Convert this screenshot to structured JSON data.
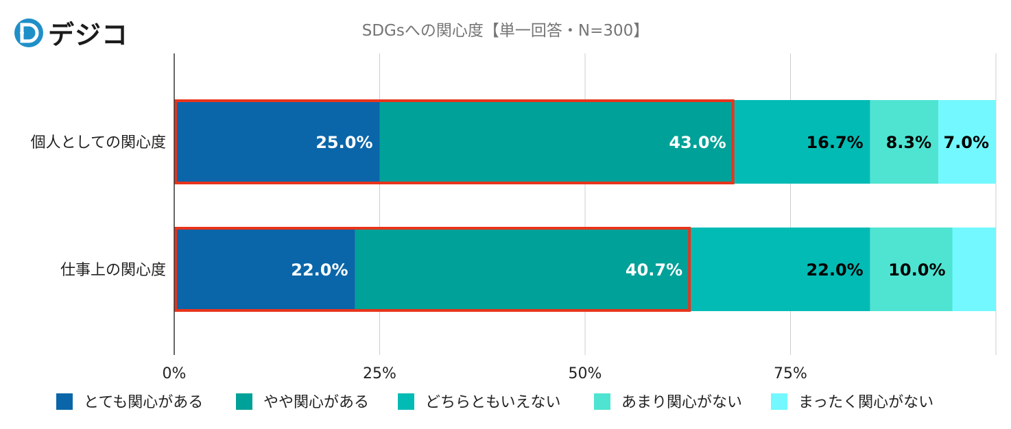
{
  "brand": {
    "name": "デジコ",
    "accent": "#1f9fd0"
  },
  "chart_data": {
    "type": "bar",
    "stacked": true,
    "orientation": "horizontal",
    "title": "SDGsへの関心度【単一回答・N=300】",
    "categories": [
      "個人としての関心度",
      "仕事上の関心度"
    ],
    "series": [
      {
        "name": "とても関心がある",
        "color": "#0a66a9",
        "values": [
          25.0,
          22.0
        ],
        "labels": [
          "25.0%",
          "22.0%"
        ],
        "label_color": "#ffffff"
      },
      {
        "name": "やや関心がある",
        "color": "#00a198",
        "values": [
          43.0,
          40.7
        ],
        "labels": [
          "43.0%",
          "40.7%"
        ],
        "label_color": "#ffffff"
      },
      {
        "name": "どちらともいえない",
        "color": "#03bbb5",
        "values": [
          16.7,
          22.0
        ],
        "labels": [
          "16.7%",
          "22.0%"
        ],
        "label_color": "#000000"
      },
      {
        "name": "あまり関心がない",
        "color": "#4ee4d1",
        "values": [
          8.3,
          10.0
        ],
        "labels": [
          "8.3%",
          "10.0%"
        ],
        "label_color": "#000000"
      },
      {
        "name": "まったく関心がない",
        "color": "#72f8fe",
        "values": [
          7.0,
          5.3
        ],
        "labels": [
          "7.0%",
          ""
        ],
        "label_color": "#000000"
      }
    ],
    "xlim": [
      0,
      100
    ],
    "xticks": [
      0,
      25,
      50,
      75,
      100
    ],
    "xtick_labels": [
      "0%",
      "25%",
      "50%",
      "75%",
      ""
    ],
    "grid": true,
    "legend_position": "bottom",
    "highlight": {
      "color": "#e8341c",
      "series_span": [
        0,
        1
      ]
    }
  }
}
